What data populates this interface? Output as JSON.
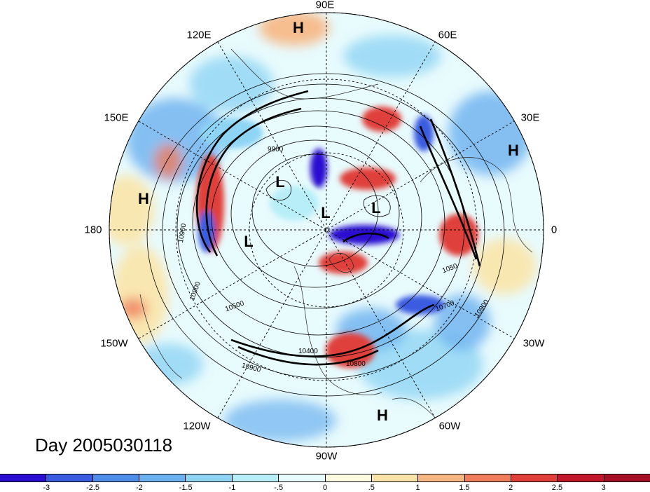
{
  "title": "Day 2005030118",
  "longitude_labels": [
    "90E",
    "60E",
    "30E",
    "0",
    "30W",
    "60W",
    "90W",
    "120W",
    "150W",
    "180",
    "150E",
    "120E"
  ],
  "pressure_centers": [
    "H",
    "H",
    "L",
    "L",
    "L",
    "L",
    "H",
    "H"
  ],
  "contour_labels": [
    "9900",
    "10900",
    "10900",
    "10500",
    "10400",
    "10800",
    "10900",
    "10700",
    "10900",
    "1050"
  ],
  "colorbar": {
    "ticks": [
      "-3",
      "-2.5",
      "-2",
      "-1.5",
      "-1",
      "-.5",
      "0",
      ".5",
      "1",
      "1.5",
      "2",
      "2.5",
      "3"
    ],
    "colors": [
      "#2a0fd0",
      "#3a5be0",
      "#4f8ee8",
      "#6bb0ef",
      "#8ed4f4",
      "#b8eef8",
      "#e8fbfd",
      "#fffbe0",
      "#fbe4a8",
      "#f7b682",
      "#ef7c5a",
      "#e0403a",
      "#c0182a",
      "#a50e26"
    ]
  }
}
